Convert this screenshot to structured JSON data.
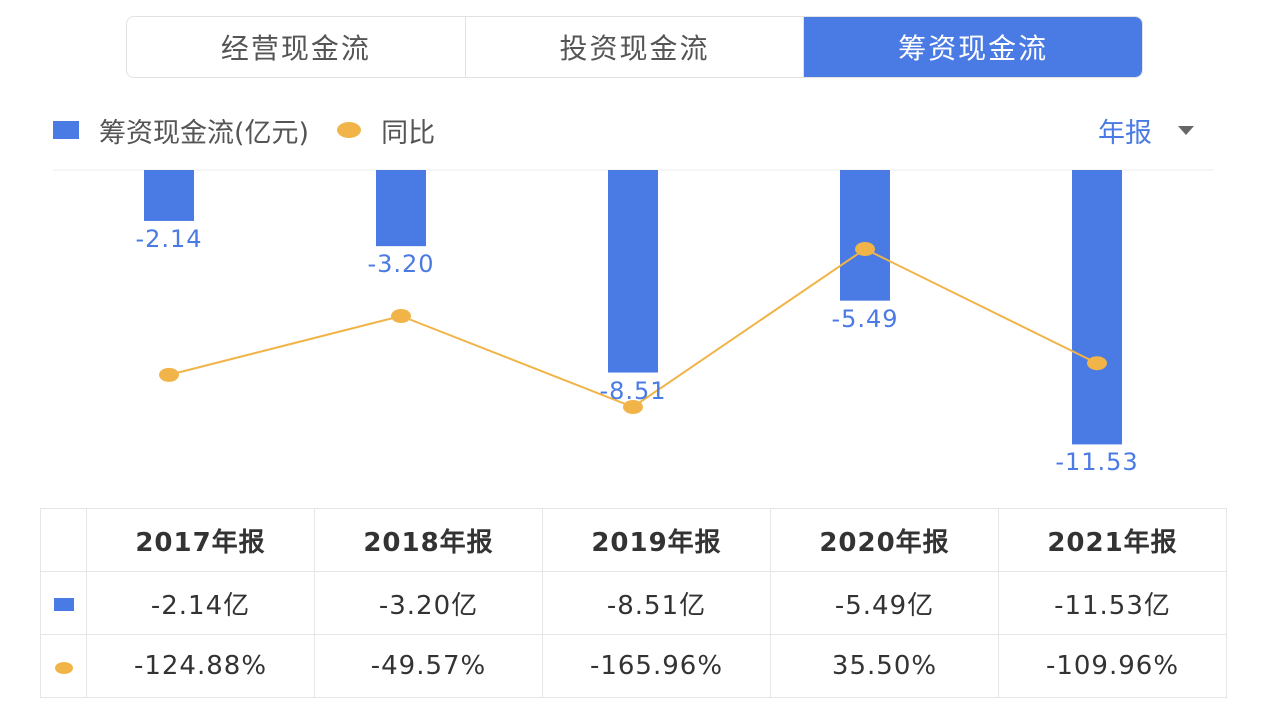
{
  "tabs": [
    {
      "label": "经营现金流",
      "active": false
    },
    {
      "label": "投资现金流",
      "active": false
    },
    {
      "label": "筹资现金流",
      "active": true
    }
  ],
  "legend": {
    "series1": "筹资现金流(亿元)",
    "series2": "同比"
  },
  "period_selector": {
    "value": "年报"
  },
  "colors": {
    "bar": "#4a7ae3",
    "line": "#f0b448",
    "positive": "#d9534f",
    "negative": "#4caf73"
  },
  "chart_data": {
    "type": "bar",
    "title": "",
    "categories": [
      "2017年报",
      "2018年报",
      "2019年报",
      "2020年报",
      "2021年报"
    ],
    "series": [
      {
        "name": "筹资现金流(亿元)",
        "type": "bar",
        "values": [
          -2.14,
          -3.2,
          -8.51,
          -5.49,
          -11.53
        ]
      },
      {
        "name": "同比",
        "type": "line",
        "values": [
          -124.88,
          -49.57,
          -165.96,
          35.5,
          -109.96
        ],
        "unit": "%"
      }
    ],
    "bar_labels": [
      "-2.14",
      "-3.20",
      "-8.51",
      "-5.49",
      "-11.53"
    ],
    "xlabel": "",
    "ylabel": "",
    "legend_position": "top-left",
    "grid": false
  },
  "table": {
    "headers": [
      "2017年报",
      "2018年报",
      "2019年报",
      "2020年报",
      "2021年报"
    ],
    "amount_row": [
      "-2.14亿",
      "-3.20亿",
      "-8.51亿",
      "-5.49亿",
      "-11.53亿"
    ],
    "yoy_row": [
      "-124.88%",
      "-49.57%",
      "-165.96%",
      "35.50%",
      "-109.96%"
    ]
  }
}
